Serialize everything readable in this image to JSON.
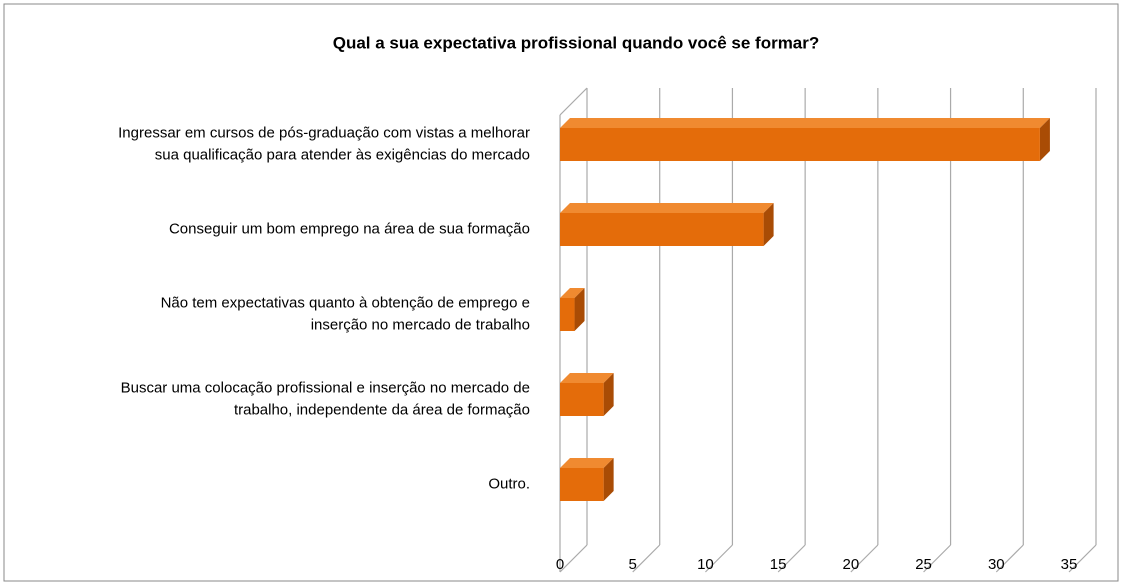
{
  "chart_data": {
    "type": "bar3d_horizontal",
    "title": "Qual a sua expectativa profissional quando você se formar?",
    "categories": [
      "Ingressar em cursos de pós-graduação com vistas a melhorar\nsua qualificação para atender às exigências do mercado",
      "Conseguir um bom emprego na área de sua formação",
      "Não tem expectativas quanto à obtenção de emprego e\ninserção no mercado de trabalho",
      "Buscar uma colocação profissional e inserção no mercado de\ntrabalho, independente da área de formação",
      "Outro."
    ],
    "values": [
      33,
      14,
      1,
      3,
      3
    ],
    "color": "#e46c0a",
    "xlim": [
      0,
      35
    ],
    "xticks": [
      0,
      5,
      10,
      15,
      20,
      25,
      30,
      35
    ],
    "grid": true
  }
}
